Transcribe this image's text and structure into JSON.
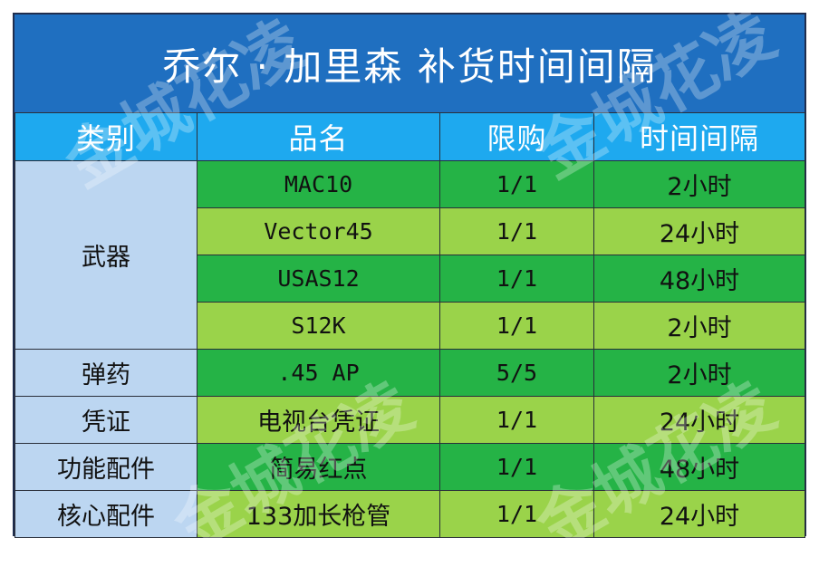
{
  "title": "乔尔 · 加里森  补货时间间隔",
  "headers": [
    "类别",
    "品名",
    "限购",
    "时间间隔"
  ],
  "rows": [
    {
      "item": "MAC10",
      "limit": "1/1",
      "interval": "2小时"
    },
    {
      "item": "Vector45",
      "limit": "1/1",
      "interval": "24小时"
    },
    {
      "item": "USAS12",
      "limit": "1/1",
      "interval": "48小时"
    },
    {
      "item": "S12K",
      "limit": "1/1",
      "interval": "2小时"
    },
    {
      "item": ".45 AP",
      "limit": "5/5",
      "interval": "2小时"
    },
    {
      "item": "电视台凭证",
      "limit": "1/1",
      "interval": "24小时"
    },
    {
      "item": "简易红点",
      "limit": "1/1",
      "interval": "48小时"
    },
    {
      "item": "133加长枪管",
      "limit": "1/1",
      "interval": "24小时"
    }
  ],
  "categories": [
    "武器",
    "弹药",
    "凭证",
    "功能配件",
    "核心配件"
  ],
  "watermark": "金城花凌",
  "colors": {
    "title_bg": "#1f6fc0",
    "header_bg": "#1ea9ef",
    "category_bg": "#bcd6f1",
    "row_dark": "#25b346",
    "row_light": "#9ad34a"
  }
}
